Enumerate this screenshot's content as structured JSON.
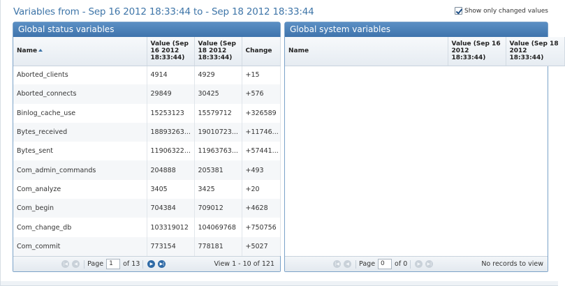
{
  "header": {
    "title": "Variables from - Sep 16 2012 18:33:44 to - Sep 18 2012 18:33:44",
    "show_changed_label": "Show only changed values",
    "show_changed_checked": true
  },
  "status_panel": {
    "title": "Global status variables",
    "columns": [
      "Name",
      "Value (Sep 16 2012 18:33:44)",
      "Value (Sep 18 2012 18:33:44)",
      "Change"
    ],
    "rows": [
      [
        "Aborted_clients",
        "4914",
        "4929",
        "+15"
      ],
      [
        "Aborted_connects",
        "29849",
        "30425",
        "+576"
      ],
      [
        "Binlog_cache_use",
        "15253123",
        "15579712",
        "+326589"
      ],
      [
        "Bytes_received",
        "18893263...",
        "19010723...",
        "+11746..."
      ],
      [
        "Bytes_sent",
        "11906322...",
        "11963763...",
        "+57441..."
      ],
      [
        "Com_admin_commands",
        "204888",
        "205381",
        "+493"
      ],
      [
        "Com_analyze",
        "3405",
        "3425",
        "+20"
      ],
      [
        "Com_begin",
        "704384",
        "709012",
        "+4628"
      ],
      [
        "Com_change_db",
        "103319012",
        "104069768",
        "+750756"
      ],
      [
        "Com_commit",
        "773154",
        "778181",
        "+5027"
      ]
    ],
    "pager": {
      "page_label": "Page",
      "page_value": "1",
      "of_label": "of 13",
      "summary": "View 1 - 10 of 121"
    }
  },
  "system_panel": {
    "title": "Global system variables",
    "columns": [
      "Name",
      "Value (Sep 16 2012 18:33:44)",
      "Value (Sep 18 2012 18:33:44)"
    ],
    "pager": {
      "page_label": "Page",
      "page_value": "0",
      "of_label": "of 0",
      "summary": "No records to view"
    }
  },
  "colors": {
    "accent": "#3e75a8",
    "panel_header": "#4a80b8"
  }
}
